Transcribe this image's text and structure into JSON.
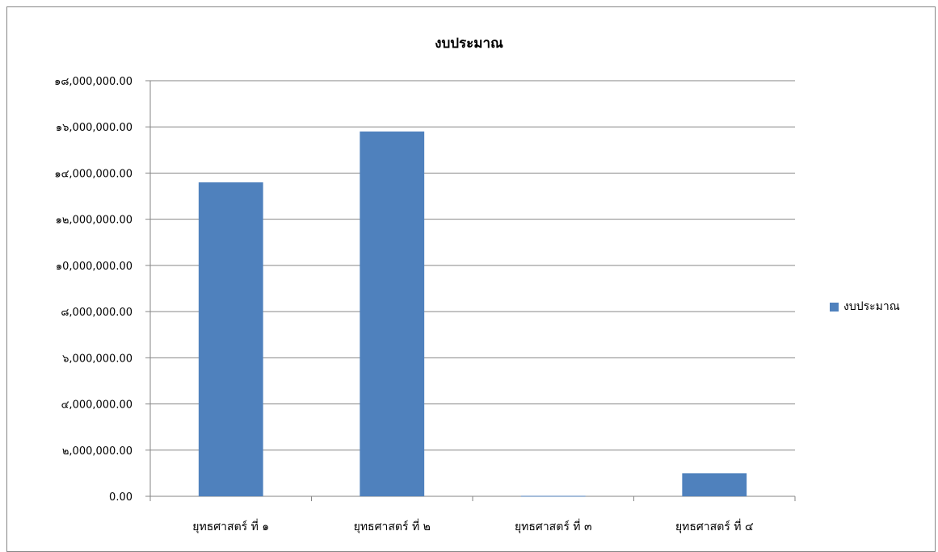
{
  "chart_data": {
    "type": "bar",
    "title": "งบประมาณ",
    "xlabel": "",
    "ylabel": "",
    "categories": [
      "ยุทธศาสตร์ ที่ ๑",
      "ยุทธศาสตร์ ที่ ๒",
      "ยุทธศาสตร์ ที่ ๓",
      "ยุทธศาสตร์ ที่ ๔"
    ],
    "series": [
      {
        "name": "งบประมาณ",
        "values": [
          13600000,
          15800000,
          20000,
          1000000
        ],
        "color": "#4F81BD"
      }
    ],
    "ylim": [
      0,
      18000000
    ],
    "yticks": [
      0,
      2000000,
      4000000,
      6000000,
      8000000,
      10000000,
      12000000,
      14000000,
      16000000,
      18000000
    ],
    "ytick_labels": [
      "0.00",
      "๒,000,000.00",
      "๔,000,000.00",
      "๖,000,000.00",
      "๘,000,000.00",
      "๑0,000,000.00",
      "๑๒,000,000.00",
      "๑๔,000,000.00",
      "๑๖,000,000.00",
      "๑๘,000,000.00"
    ],
    "grid": true,
    "legend_position": "right",
    "gridline_color": "#868686",
    "axis_color": "#868686"
  }
}
